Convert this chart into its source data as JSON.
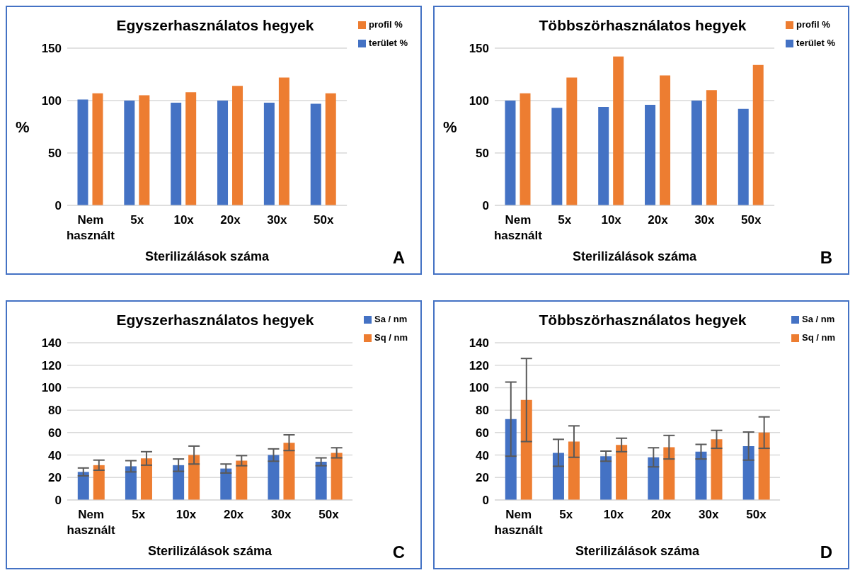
{
  "chart_data": [
    {
      "type": "bar",
      "title": "Egyszerhasználatos hegyek",
      "xlabel": "Sterilizálások száma",
      "ylabel": "%",
      "categories": [
        "Nem használt",
        "5x",
        "10x",
        "20x",
        "30x",
        "50x"
      ],
      "series": [
        {
          "name": "terület %",
          "color": "#4472c4",
          "values": [
            101,
            100,
            98,
            100,
            98,
            97
          ]
        },
        {
          "name": "profil %",
          "color": "#ed7d31",
          "values": [
            107,
            105,
            108,
            114,
            122,
            107
          ]
        }
      ],
      "ylim": [
        0,
        150
      ],
      "yticks": [
        0,
        50,
        100,
        150
      ],
      "grid": "y",
      "legend": "top right",
      "annotations": [
        "A"
      ]
    },
    {
      "type": "bar",
      "title": "Többszörhasználatos hegyek",
      "xlabel": "Sterilizálások száma",
      "ylabel": "%",
      "categories": [
        "Nem használt",
        "5x",
        "10x",
        "20x",
        "30x",
        "50x"
      ],
      "series": [
        {
          "name": "terület %",
          "color": "#4472c4",
          "values": [
            100,
            93,
            94,
            96,
            100,
            92
          ]
        },
        {
          "name": "profil %",
          "color": "#ed7d31",
          "values": [
            107,
            122,
            142,
            124,
            110,
            134
          ]
        }
      ],
      "ylim": [
        0,
        150
      ],
      "yticks": [
        0,
        50,
        100,
        150
      ],
      "grid": "y",
      "legend": "top right",
      "annotations": [
        "B"
      ]
    },
    {
      "type": "bar",
      "title": "Egyszerhasználatos hegyek",
      "xlabel": "Sterilizálások száma",
      "categories": [
        "Nem használt",
        "5x",
        "10x",
        "20x",
        "30x",
        "50x"
      ],
      "series": [
        {
          "name": "Sa / nm",
          "color": "#4472c4",
          "values": [
            25,
            30,
            31,
            28,
            40,
            34
          ],
          "errors": [
            3.5,
            5,
            5.5,
            4,
            5.5,
            3.5
          ]
        },
        {
          "name": "Sq / nm",
          "color": "#ed7d31",
          "values": [
            31,
            37,
            40,
            35,
            51,
            42
          ],
          "errors": [
            4.5,
            6,
            8,
            4.5,
            7,
            4.5
          ]
        }
      ],
      "ylim": [
        0,
        140
      ],
      "yticks": [
        0,
        20,
        40,
        60,
        80,
        100,
        120,
        140
      ],
      "grid": "y",
      "legend": "top right",
      "annotations": [
        "C"
      ]
    },
    {
      "type": "bar",
      "title": "Többszörhasználatos hegyek",
      "xlabel": "Sterilizálások száma",
      "categories": [
        "Nem használt",
        "5x",
        "10x",
        "20x",
        "30x",
        "50x"
      ],
      "series": [
        {
          "name": "Sa / nm",
          "color": "#4472c4",
          "values": [
            72,
            42,
            39,
            38,
            43,
            48
          ],
          "errors": [
            33,
            12,
            4.5,
            8.5,
            6.5,
            12.5
          ]
        },
        {
          "name": "Sq / nm",
          "color": "#ed7d31",
          "values": [
            89,
            52,
            49,
            47,
            54,
            60
          ],
          "errors": [
            37,
            14,
            6,
            10.5,
            8,
            14
          ]
        }
      ],
      "ylim": [
        0,
        140
      ],
      "yticks": [
        0,
        20,
        40,
        60,
        80,
        100,
        120,
        140
      ],
      "grid": "y",
      "legend": "top right",
      "annotations": [
        "D"
      ]
    }
  ]
}
